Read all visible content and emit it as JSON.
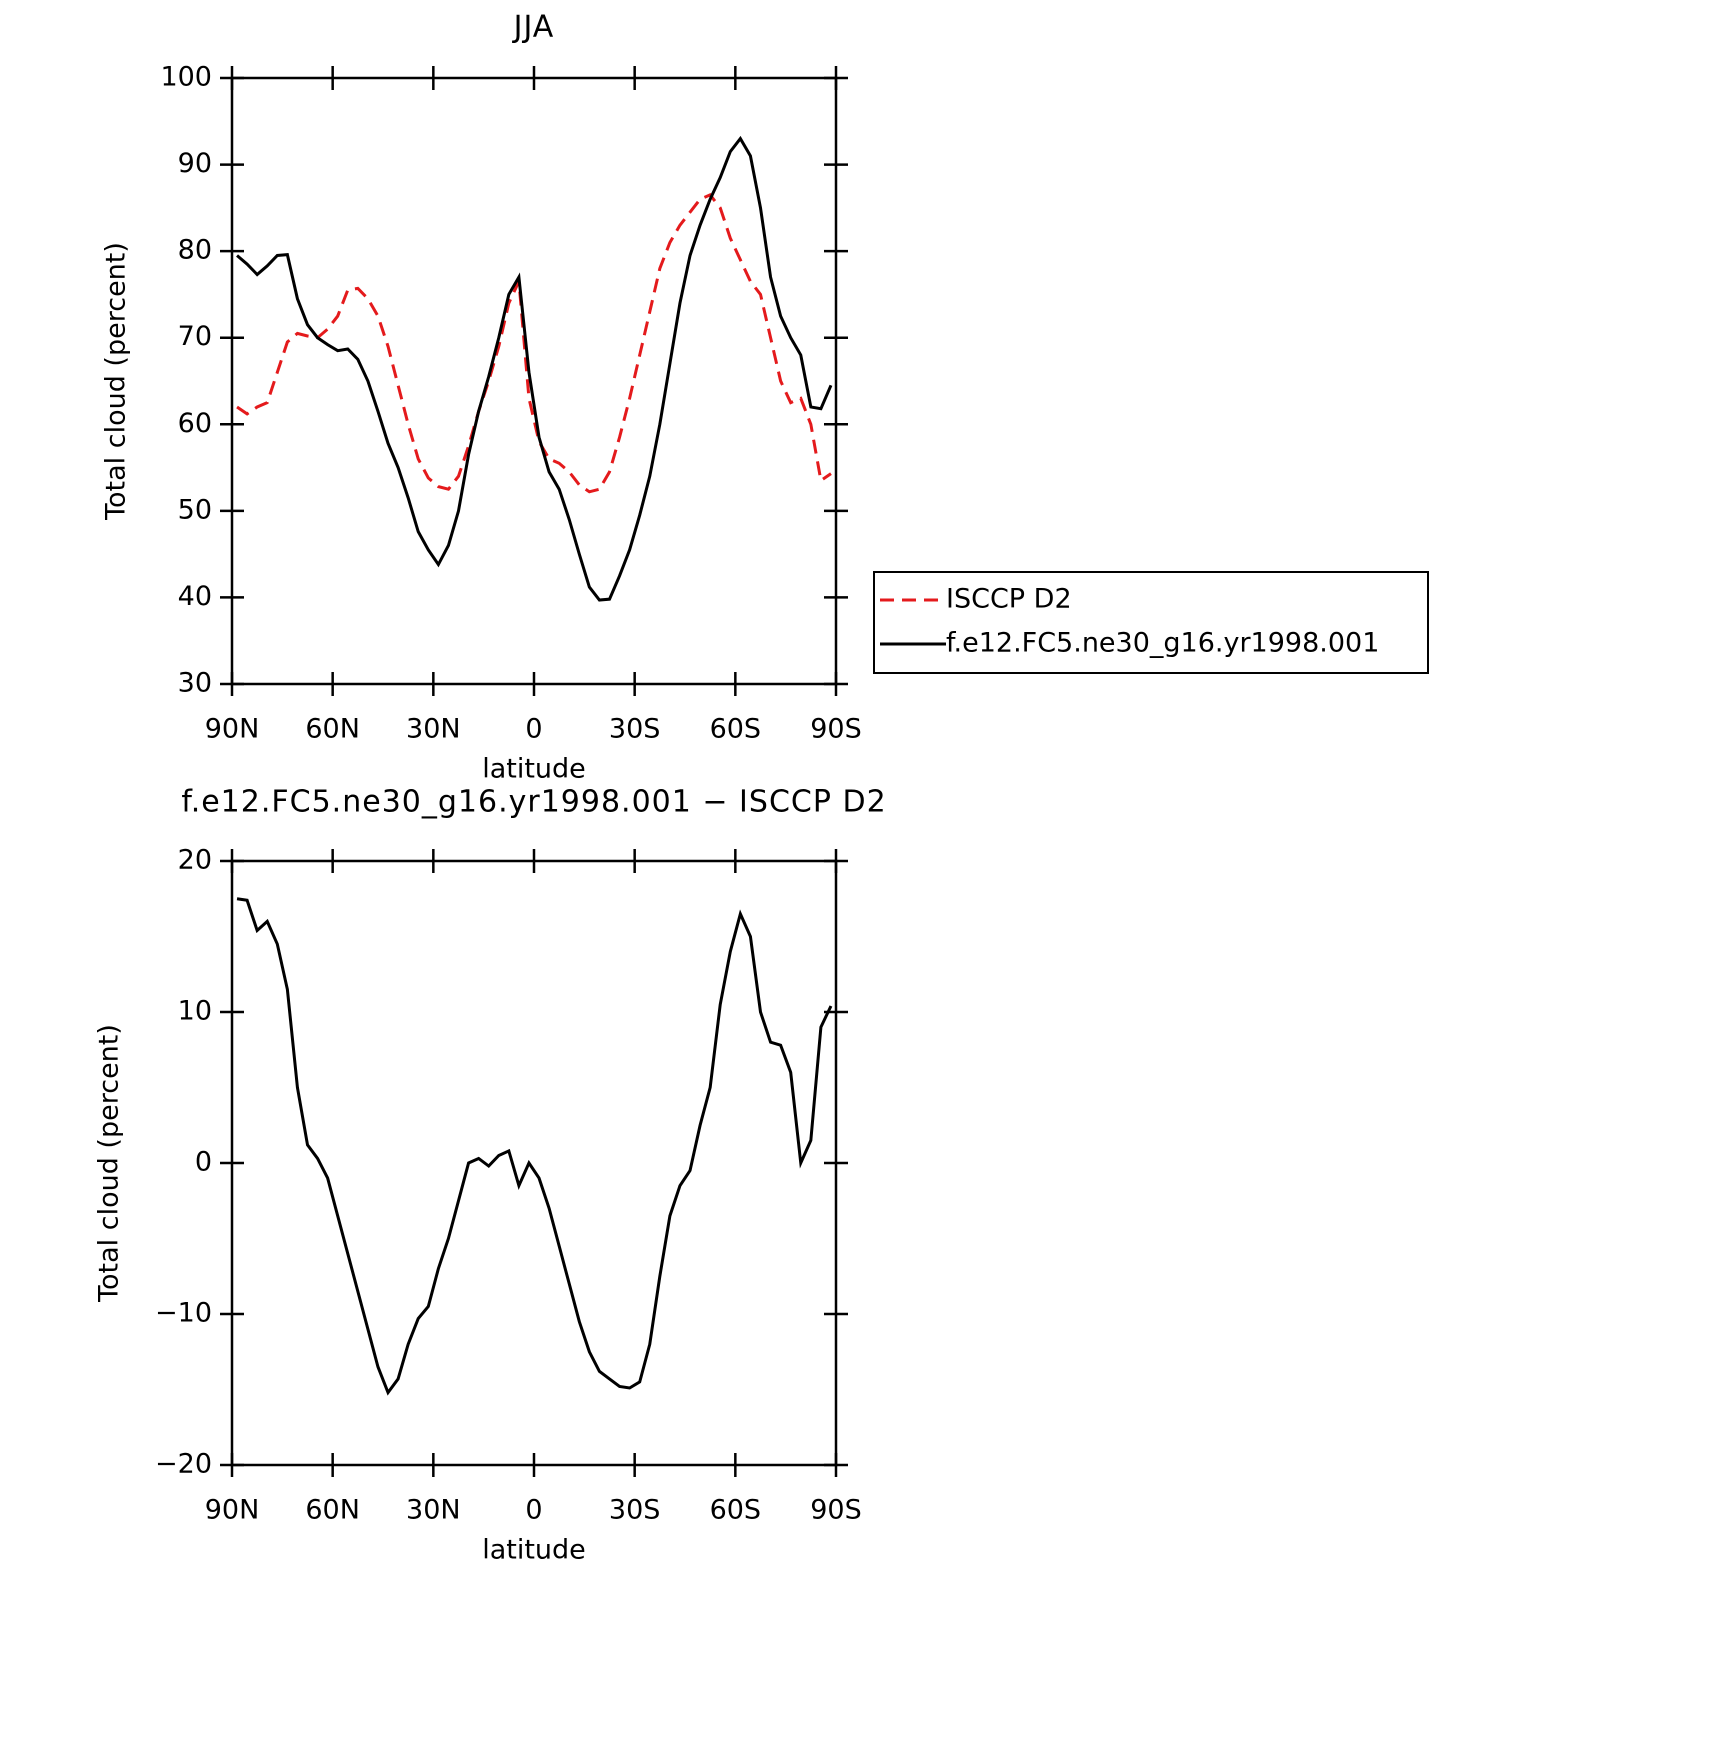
{
  "chart_data": [
    {
      "type": "line",
      "title": "JJA",
      "x_label": "latitude",
      "y_label": "Total cloud (percent)",
      "x": [
        88.5,
        85.5,
        82.5,
        79.5,
        76.5,
        73.5,
        70.5,
        67.5,
        64.5,
        61.5,
        58.5,
        55.5,
        52.5,
        49.5,
        46.5,
        43.5,
        40.5,
        37.5,
        34.5,
        31.5,
        28.5,
        25.5,
        22.5,
        19.5,
        16.5,
        13.5,
        10.5,
        7.5,
        4.5,
        1.5,
        -1.5,
        -4.5,
        -7.5,
        -10.5,
        -13.5,
        -16.5,
        -19.5,
        -22.5,
        -25.5,
        -28.5,
        -31.5,
        -34.5,
        -37.5,
        -40.5,
        -43.5,
        -46.5,
        -49.5,
        -52.5,
        -55.5,
        -58.5,
        -61.5,
        -64.5,
        -67.5,
        -70.5,
        -73.5,
        -76.5,
        -79.5,
        -82.5,
        -85.5,
        -88.5
      ],
      "series": [
        {
          "name": "ISCCP D2",
          "color": "#e41a1c",
          "line_style": "dashed",
          "values": [
            62,
            61.2,
            62,
            62.5,
            66,
            69.5,
            70.5,
            70.2,
            70,
            71,
            72.5,
            75.5,
            75.7,
            74.5,
            72.5,
            69,
            64.5,
            60,
            56,
            53.8,
            52.8,
            52.5,
            54,
            57.5,
            61.5,
            65,
            69,
            74,
            76.5,
            63,
            58,
            56,
            55.5,
            54.5,
            53,
            52.2,
            52.5,
            54.5,
            58.5,
            63,
            68,
            73,
            78,
            81,
            83,
            84.5,
            86,
            86.5,
            85,
            81.5,
            79,
            76.5,
            75,
            70,
            65,
            62.5,
            63,
            60,
            53.5,
            54.3
          ]
        },
        {
          "name": "f.e12.FC5.ne30_g16.yr1998.001",
          "color": "#000000",
          "line_style": "solid",
          "values": [
            79.5,
            78.5,
            77.3,
            78.3,
            79.5,
            79.6,
            74.5,
            71.5,
            70,
            69.2,
            68.5,
            68.7,
            67.5,
            65,
            61.5,
            57.8,
            55,
            51.5,
            47.6,
            45.5,
            43.8,
            46,
            50,
            56.5,
            61.5,
            65.5,
            70,
            75,
            77,
            66,
            58.5,
            54.5,
            52.5,
            49,
            45,
            41.2,
            39.7,
            39.8,
            42.5,
            45.5,
            49.5,
            54,
            60,
            67,
            74,
            79.5,
            83,
            86,
            88.5,
            91.5,
            93,
            91,
            85,
            77,
            72.5,
            70,
            68,
            62,
            61.8,
            64.5
          ]
        }
      ],
      "xlim": [
        90,
        -90
      ],
      "xticks": [
        {
          "value": 90,
          "label": "90N"
        },
        {
          "value": 60,
          "label": "60N"
        },
        {
          "value": 30,
          "label": "30N"
        },
        0,
        {
          "value": -30,
          "label": "30S"
        },
        {
          "value": -60,
          "label": "60S"
        },
        {
          "value": -90,
          "label": "90S"
        }
      ],
      "ylim": [
        30,
        100
      ],
      "yticks": [
        30,
        40,
        50,
        60,
        70,
        80,
        90,
        100
      ],
      "grid": false,
      "legend": "right"
    },
    {
      "type": "line",
      "title": "f.e12.FC5.ne30_g16.yr1998.001 − ISCCP D2",
      "x_label": "latitude",
      "y_label": "Total cloud (percent)",
      "x": [
        88.5,
        85.5,
        82.5,
        79.5,
        76.5,
        73.5,
        70.5,
        67.5,
        64.5,
        61.5,
        58.5,
        55.5,
        52.5,
        49.5,
        46.5,
        43.5,
        40.5,
        37.5,
        34.5,
        31.5,
        28.5,
        25.5,
        22.5,
        19.5,
        16.5,
        13.5,
        10.5,
        7.5,
        4.5,
        1.5,
        -1.5,
        -4.5,
        -7.5,
        -10.5,
        -13.5,
        -16.5,
        -19.5,
        -22.5,
        -25.5,
        -28.5,
        -31.5,
        -34.5,
        -37.5,
        -40.5,
        -43.5,
        -46.5,
        -49.5,
        -52.5,
        -55.5,
        -58.5,
        -61.5,
        -64.5,
        -67.5,
        -70.5,
        -73.5,
        -76.5,
        -79.5,
        -82.5,
        -85.5,
        -88.5
      ],
      "series": [
        {
          "color": "#000000",
          "line_style": "solid",
          "values": [
            17.5,
            17.4,
            15.4,
            16,
            14.5,
            11.5,
            5,
            1.2,
            0.3,
            -1,
            -3.5,
            -6,
            -8.5,
            -11,
            -13.5,
            -15.2,
            -14.3,
            -12,
            -10.3,
            -9.5,
            -7,
            -5,
            -2.5,
            0,
            0.3,
            -0.2,
            0.5,
            0.8,
            -1.5,
            0,
            -1,
            -3,
            -5.5,
            -8,
            -10.5,
            -12.5,
            -13.8,
            -14.3,
            -14.8,
            -14.9,
            -14.5,
            -12,
            -7.5,
            -3.5,
            -1.5,
            -0.5,
            2.5,
            5,
            10.5,
            14,
            16.5,
            15,
            10,
            8,
            7.8,
            6,
            0,
            1.5,
            9,
            10.4
          ]
        }
      ],
      "xlim": [
        90,
        -90
      ],
      "xticks": [
        {
          "value": 90,
          "label": "90N"
        },
        {
          "value": 60,
          "label": "60N"
        },
        {
          "value": 30,
          "label": "30N"
        },
        0,
        {
          "value": -30,
          "label": "30S"
        },
        {
          "value": -60,
          "label": "60S"
        },
        {
          "value": -90,
          "label": "90S"
        }
      ],
      "ylim": [
        -20,
        20
      ],
      "yticks": [
        {
          "value": -20,
          "label": "−20"
        },
        {
          "value": -10,
          "label": "−10"
        },
        0,
        10,
        20
      ],
      "grid": false
    }
  ]
}
